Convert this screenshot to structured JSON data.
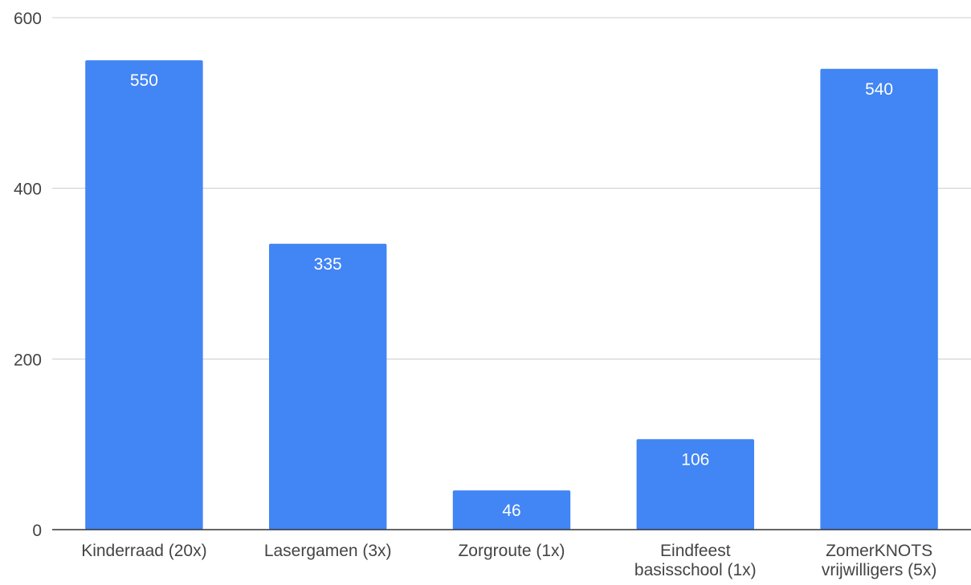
{
  "chart_data": {
    "type": "bar",
    "categories": [
      [
        "Kinderraad (20x)"
      ],
      [
        "Lasergamen (3x)"
      ],
      [
        "Zorgroute (1x)"
      ],
      [
        "Eindfeest",
        "basisschool (1x)"
      ],
      [
        "ZomerKNOTS",
        "vrijwilligers (5x)"
      ]
    ],
    "values": [
      550,
      335,
      46,
      106,
      540
    ],
    "data_labels": [
      "550",
      "335",
      "46",
      "106",
      "540"
    ],
    "y_ticks": [
      0,
      200,
      400,
      600
    ],
    "y_tick_labels": [
      "0",
      "200",
      "400",
      "600"
    ],
    "ylim": [
      0,
      600
    ],
    "title": "",
    "xlabel": "",
    "ylabel": "",
    "grid": true,
    "legend": "none",
    "bar_color": "#4285f4"
  }
}
